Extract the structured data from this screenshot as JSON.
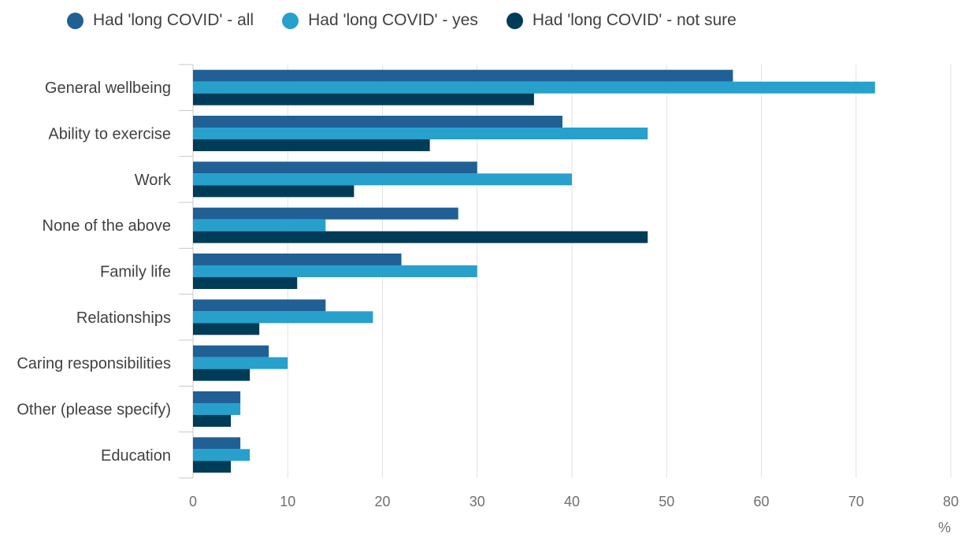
{
  "chart_data": {
    "type": "bar",
    "orientation": "horizontal",
    "categories": [
      "General wellbeing",
      "Ability to exercise",
      "Work",
      "None of the above",
      "Family life",
      "Relationships",
      "Caring responsibilities",
      "Other (please specify)",
      "Education"
    ],
    "series": [
      {
        "name": "Had 'long COVID' - all",
        "color": "#206095",
        "values": [
          57,
          39,
          30,
          28,
          22,
          14,
          8,
          5,
          5
        ]
      },
      {
        "name": "Had 'long COVID' - yes",
        "color": "#27a0cc",
        "values": [
          72,
          48,
          40,
          14,
          30,
          19,
          10,
          5,
          6
        ]
      },
      {
        "name": "Had 'long COVID' - not sure",
        "color": "#003c57",
        "values": [
          36,
          25,
          17,
          48,
          11,
          7,
          6,
          4,
          4
        ]
      }
    ],
    "xlim": [
      0,
      80
    ],
    "xticks": [
      "0",
      "10",
      "20",
      "30",
      "40",
      "50",
      "60",
      "70",
      "80"
    ],
    "xunit": "%",
    "grid": true,
    "legend_position": "top"
  }
}
